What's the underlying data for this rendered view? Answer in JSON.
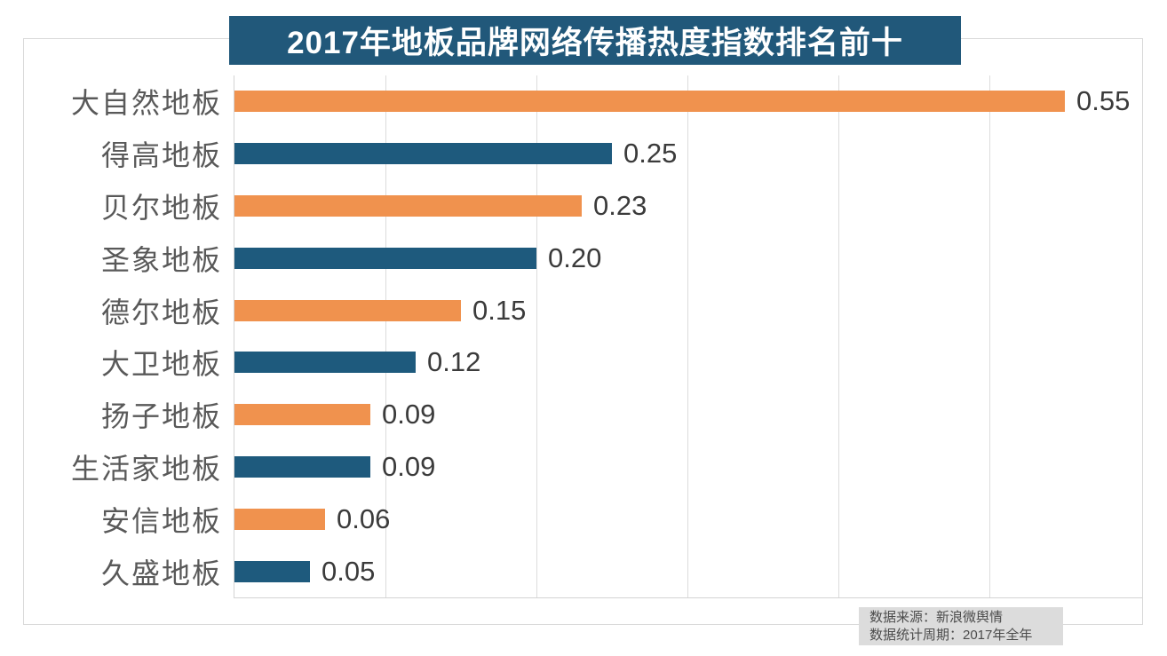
{
  "chart_data": {
    "type": "bar",
    "orientation": "horizontal",
    "title": "2017年地板品牌网络传播热度指数排名前十",
    "categories": [
      "大自然地板",
      "得高地板",
      "贝尔地板",
      "圣象地板",
      "德尔地板",
      "大卫地板",
      "扬子地板",
      "生活家地板",
      "安信地板",
      "久盛地板"
    ],
    "values": [
      0.55,
      0.25,
      0.23,
      0.2,
      0.15,
      0.12,
      0.09,
      0.09,
      0.06,
      0.05
    ],
    "value_labels": [
      "0.55",
      "0.25",
      "0.23",
      "0.20",
      "0.15",
      "0.12",
      "0.09",
      "0.09",
      "0.06",
      "0.05"
    ],
    "xlim": [
      0,
      0.6
    ],
    "gridline_ticks": [
      0.1,
      0.2,
      0.3,
      0.4,
      0.5
    ],
    "grid": true,
    "legend": "none",
    "bar_color_odd_rows": "#f0924e",
    "bar_color_even_rows": "#1e5a7d"
  },
  "title_banner": {
    "text": "2017年地板品牌网络传播热度指数排名前十",
    "background": "#21587a",
    "text_color": "#ffffff"
  },
  "source_note": {
    "line1": "数据来源：新浪微舆情",
    "line2": "数据统计周期：2017年全年"
  },
  "colors": {
    "category_label": "#595959",
    "value_label": "#3b3b3b",
    "gridline": "#dcdcdc",
    "frame_border": "#d9d9d9",
    "note_background": "#dcdcdc",
    "background": "#ffffff"
  }
}
